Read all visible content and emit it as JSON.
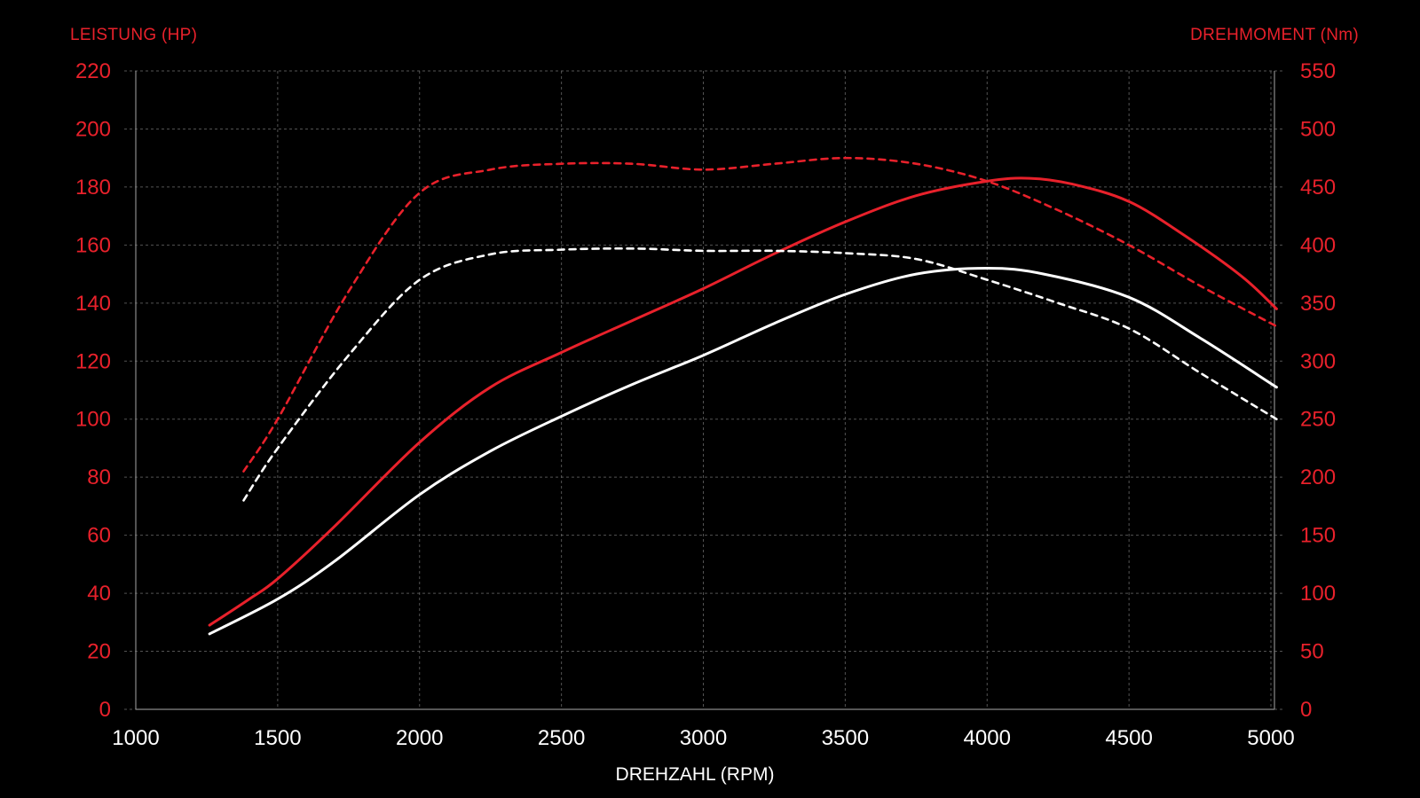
{
  "chart_data": {
    "type": "line",
    "y_left_label": "LEISTUNG (HP)",
    "y_right_label": "DREHMOMENT (Nm)",
    "xlabel": "DREHZAHL (RPM)",
    "x_ticks": [
      "1000",
      "1500",
      "2000",
      "2500",
      "3000",
      "3500",
      "4000",
      "4500",
      "5000"
    ],
    "y_left_ticks": [
      "0",
      "20",
      "40",
      "60",
      "80",
      "100",
      "120",
      "140",
      "160",
      "180",
      "200",
      "220"
    ],
    "y_right_ticks": [
      "0",
      "50",
      "100",
      "150",
      "200",
      "250",
      "300",
      "350",
      "400",
      "450",
      "500",
      "550"
    ],
    "xlim": [
      1000,
      5000
    ],
    "ylim_left": [
      0,
      220
    ],
    "ylim_right": [
      0,
      550
    ],
    "grid": true,
    "colors": {
      "red": "#e8212b",
      "white": "#ffffff",
      "grid": "#6f6f6f"
    },
    "series": [
      {
        "axis": "left",
        "color": "#e8212b",
        "style": "solid",
        "x": [
          1260,
          1400,
          1500,
          1700,
          2000,
          2250,
          2500,
          2750,
          3000,
          3250,
          3500,
          3750,
          4000,
          4150,
          4300,
          4500,
          4700,
          4900,
          5020
        ],
        "y": [
          29,
          38,
          45,
          63,
          92,
          111,
          123,
          134,
          145,
          157,
          168,
          177,
          182,
          183,
          181,
          175,
          163,
          149,
          138
        ]
      },
      {
        "axis": "left",
        "color": "#ffffff",
        "style": "solid",
        "x": [
          1260,
          1500,
          1700,
          2000,
          2250,
          2500,
          2750,
          3000,
          3250,
          3500,
          3750,
          4000,
          4200,
          4500,
          4750,
          5020
        ],
        "y": [
          26,
          38,
          51,
          74,
          89,
          101,
          112,
          122,
          133,
          143,
          150,
          152,
          150,
          142,
          128,
          111
        ]
      },
      {
        "axis": "right",
        "color": "#e8212b",
        "style": "dashed",
        "x": [
          1380,
          1500,
          1750,
          2000,
          2250,
          2500,
          2750,
          3000,
          3250,
          3500,
          3750,
          4000,
          4250,
          4500,
          4750,
          5020
        ],
        "y": [
          205,
          250,
          360,
          445,
          465,
          470,
          470,
          465,
          470,
          475,
          470,
          455,
          430,
          400,
          365,
          330
        ]
      },
      {
        "axis": "right",
        "color": "#ffffff",
        "style": "dashed",
        "x": [
          1380,
          1500,
          1750,
          2000,
          2250,
          2500,
          2750,
          3000,
          3250,
          3500,
          3750,
          4000,
          4250,
          4500,
          4750,
          5020
        ],
        "y": [
          180,
          225,
          305,
          370,
          392,
          396,
          397,
          395,
          395,
          393,
          388,
          370,
          350,
          328,
          290,
          250
        ]
      }
    ]
  }
}
